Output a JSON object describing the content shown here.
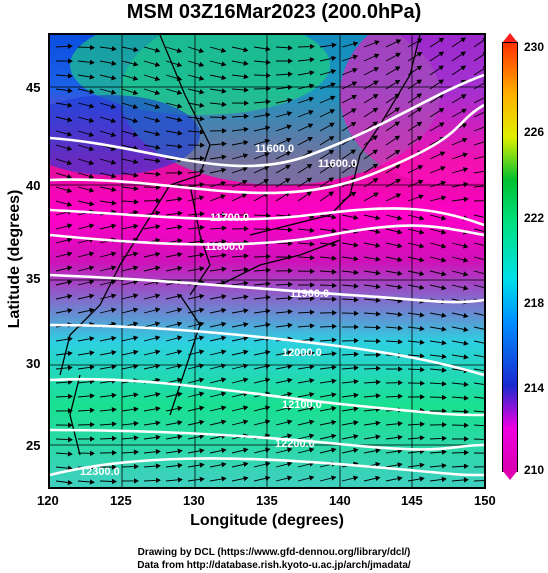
{
  "title": "MSM 03Z16Mar2023 (200.0hPa)",
  "x_axis": {
    "title": "Longitude (degrees)",
    "ticks": [
      "120",
      "125",
      "130",
      "135",
      "140",
      "145",
      "150"
    ]
  },
  "y_axis": {
    "title": "Latitude  (degrees)",
    "ticks": [
      "45",
      "40",
      "35",
      "30",
      "25"
    ]
  },
  "colorbar": {
    "labels": [
      "230",
      "226",
      "222",
      "218",
      "214",
      "210"
    ],
    "colors": [
      "#ff3000",
      "#e0f000",
      "#00c030",
      "#00e0e8",
      "#1a2ad0",
      "#d800b0"
    ]
  },
  "contours": [
    "11600.0",
    "11600.0",
    "11700.0",
    "11800.0",
    "11900.0",
    "12000.0",
    "12100.0",
    "12200.0",
    "12300.0"
  ],
  "footer": {
    "line1": "Drawing by DCL (https://www.gfd-dennou.org/library/dcl/)",
    "line2": "Data from http://database.rish.kyoto-u.ac.jp/arch/jmadata/"
  }
}
